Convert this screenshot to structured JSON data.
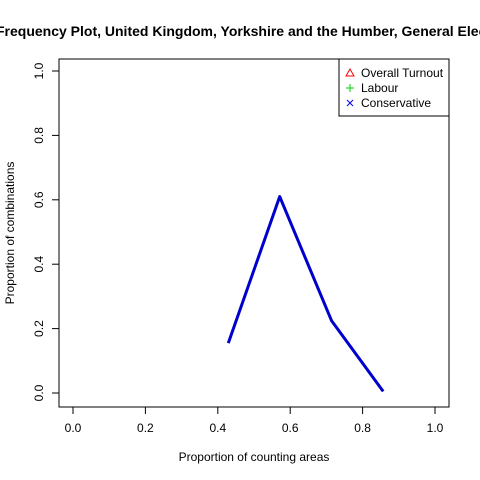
{
  "chart_data": {
    "type": "line",
    "title": "Frequency Plot, United Kingdom, Yorkshire and the Humber, General Election",
    "xlabel": "Proportion of counting areas",
    "ylabel": "Proportion of combinations",
    "xlim": [
      0,
      1
    ],
    "ylim": [
      0,
      1
    ],
    "x_ticks": [
      "0.0",
      "0.2",
      "0.4",
      "0.6",
      "0.8",
      "1.0"
    ],
    "y_ticks": [
      "0.0",
      "0.2",
      "0.4",
      "0.6",
      "0.8",
      "1.0"
    ],
    "grid": false,
    "legend_position": "top-right",
    "legend": [
      {
        "name": "Overall Turnout",
        "marker": "triangle",
        "color": "#ff0000"
      },
      {
        "name": "Labour",
        "marker": "plus",
        "color": "#00cd00"
      },
      {
        "name": "Conservative",
        "marker": "cross",
        "color": "#0000ff"
      }
    ],
    "series": [
      {
        "color": "#0000cd",
        "x": [
          0.429,
          0.571,
          0.714,
          0.857
        ],
        "y": [
          0.155,
          0.61,
          0.225,
          0.005
        ]
      }
    ]
  }
}
